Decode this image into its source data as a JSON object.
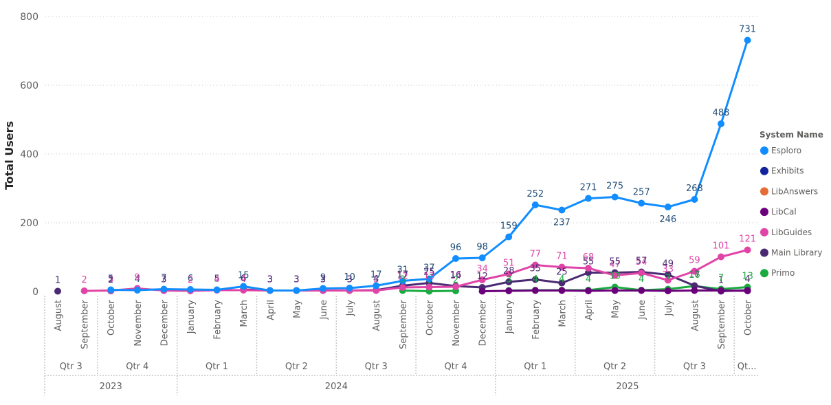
{
  "chart_data": {
    "type": "line",
    "ylabel": "Total Users",
    "ylim": [
      0,
      800
    ],
    "yticks": [
      0,
      200,
      400,
      600,
      800
    ],
    "grid": true,
    "legend_title": "System Name",
    "legend_position": "right",
    "months": [
      "August",
      "September",
      "October",
      "November",
      "December",
      "January",
      "February",
      "March",
      "April",
      "May",
      "June",
      "July",
      "August",
      "September",
      "October",
      "November",
      "December",
      "January",
      "February",
      "March",
      "April",
      "May",
      "June",
      "July",
      "August",
      "September",
      "October"
    ],
    "quarters": [
      {
        "label": "Qtr 3",
        "start": 0,
        "end": 1
      },
      {
        "label": "Qtr 4",
        "start": 2,
        "end": 4
      },
      {
        "label": "Qtr 1",
        "start": 5,
        "end": 7
      },
      {
        "label": "Qtr 2",
        "start": 8,
        "end": 10
      },
      {
        "label": "Qtr 3",
        "start": 11,
        "end": 13
      },
      {
        "label": "Qtr 4",
        "start": 14,
        "end": 16
      },
      {
        "label": "Qtr 1",
        "start": 17,
        "end": 19
      },
      {
        "label": "Qtr 2",
        "start": 20,
        "end": 22
      },
      {
        "label": "Qtr 3",
        "start": 23,
        "end": 25
      },
      {
        "label": "Qt...",
        "start": 26,
        "end": 26
      }
    ],
    "years": [
      {
        "label": "2023",
        "start": 0,
        "end": 4
      },
      {
        "label": "2024",
        "start": 5,
        "end": 16
      },
      {
        "label": "2025",
        "start": 17,
        "end": 26
      }
    ],
    "series": [
      {
        "name": "Esploro",
        "color": "#118DFF",
        "label_color": "#1f4e79",
        "show_labels": true,
        "values": [
          null,
          null,
          5,
          4,
          7,
          6,
          5,
          15,
          3,
          3,
          9,
          10,
          17,
          31,
          37,
          96,
          98,
          159,
          252,
          237,
          271,
          275,
          257,
          246,
          268,
          488,
          731
        ],
        "label_pos": [
          "above",
          "above",
          "above",
          "above",
          "above",
          "above",
          "above",
          "above",
          "above",
          "above",
          "above",
          "above",
          "above",
          "above",
          "above",
          "above",
          "above",
          "above",
          "above",
          "below",
          "above",
          "above",
          "above",
          "below",
          "above",
          "above",
          "above"
        ]
      },
      {
        "name": "Exhibits",
        "color": "#12239E",
        "label_color": "#12239E",
        "show_labels": false,
        "values": [
          null,
          null,
          null,
          null,
          null,
          null,
          null,
          null,
          null,
          null,
          null,
          null,
          null,
          null,
          null,
          null,
          null,
          null,
          null,
          null,
          null,
          null,
          null,
          null,
          null,
          null,
          null
        ]
      },
      {
        "name": "LibAnswers",
        "color": "#E66C37",
        "label_color": "#E66C37",
        "show_labels": false,
        "values": [
          null,
          null,
          null,
          null,
          null,
          null,
          null,
          null,
          null,
          null,
          null,
          null,
          null,
          null,
          null,
          null,
          null,
          null,
          null,
          null,
          null,
          null,
          null,
          null,
          null,
          null,
          null
        ]
      },
      {
        "name": "LibCal",
        "color": "#6B007B",
        "label_color": "#6B007B",
        "show_labels": false,
        "values": [
          null,
          null,
          null,
          null,
          null,
          null,
          null,
          null,
          null,
          null,
          null,
          null,
          null,
          null,
          null,
          null,
          1,
          2,
          3,
          3,
          2,
          3,
          3,
          2,
          3,
          3,
          2
        ]
      },
      {
        "name": "LibGuides",
        "color": "#E044A7",
        "label_color": "#E044A7",
        "show_labels": true,
        "values": [
          null,
          2,
          3,
          9,
          3,
          2,
          4,
          4,
          3,
          3,
          3,
          3,
          3,
          12,
          13,
          14,
          34,
          51,
          77,
          71,
          68,
          47,
          54,
          33,
          59,
          101,
          121
        ],
        "label_pos": [
          "above",
          "above",
          "above",
          "above",
          "above",
          "above",
          "above",
          "above",
          "above",
          "above",
          "above",
          "above",
          "above",
          "above",
          "above",
          "above",
          "above",
          "above",
          "above",
          "above",
          "above",
          "above",
          "above",
          "above",
          "above",
          "above",
          "above"
        ]
      },
      {
        "name": "Main Library",
        "color": "#4A2A73",
        "label_color": "#4A2A73",
        "show_labels": true,
        "values": [
          1,
          null,
          2,
          null,
          3,
          null,
          null,
          6,
          3,
          3,
          3,
          3,
          4,
          17,
          25,
          16,
          12,
          28,
          35,
          25,
          55,
          55,
          57,
          49,
          17,
          1,
          4
        ],
        "label_pos": [
          "above",
          "above",
          "above",
          "above",
          "above",
          "above",
          "above",
          "above",
          "above",
          "above",
          "above",
          "above",
          "above",
          "above",
          "above",
          "above",
          "above",
          "above",
          "above",
          "above",
          "above",
          "above",
          "above",
          "above",
          "above",
          "above",
          "above"
        ]
      },
      {
        "name": "Primo",
        "color": "#1AAB40",
        "label_color": "#1AAB40",
        "show_labels": true,
        "values": [
          null,
          null,
          null,
          null,
          null,
          null,
          null,
          null,
          null,
          null,
          null,
          null,
          null,
          3,
          1,
          2,
          null,
          3,
          4,
          4,
          4,
          13,
          4,
          7,
          16,
          7,
          13
        ],
        "label_pos": [
          "above",
          "above",
          "above",
          "above",
          "above",
          "above",
          "above",
          "above",
          "above",
          "above",
          "above",
          "above",
          "above",
          "above",
          "above",
          "above",
          "above",
          "above",
          "above",
          "above",
          "above",
          "above",
          "above",
          "above",
          "above",
          "above",
          "above"
        ]
      }
    ]
  }
}
